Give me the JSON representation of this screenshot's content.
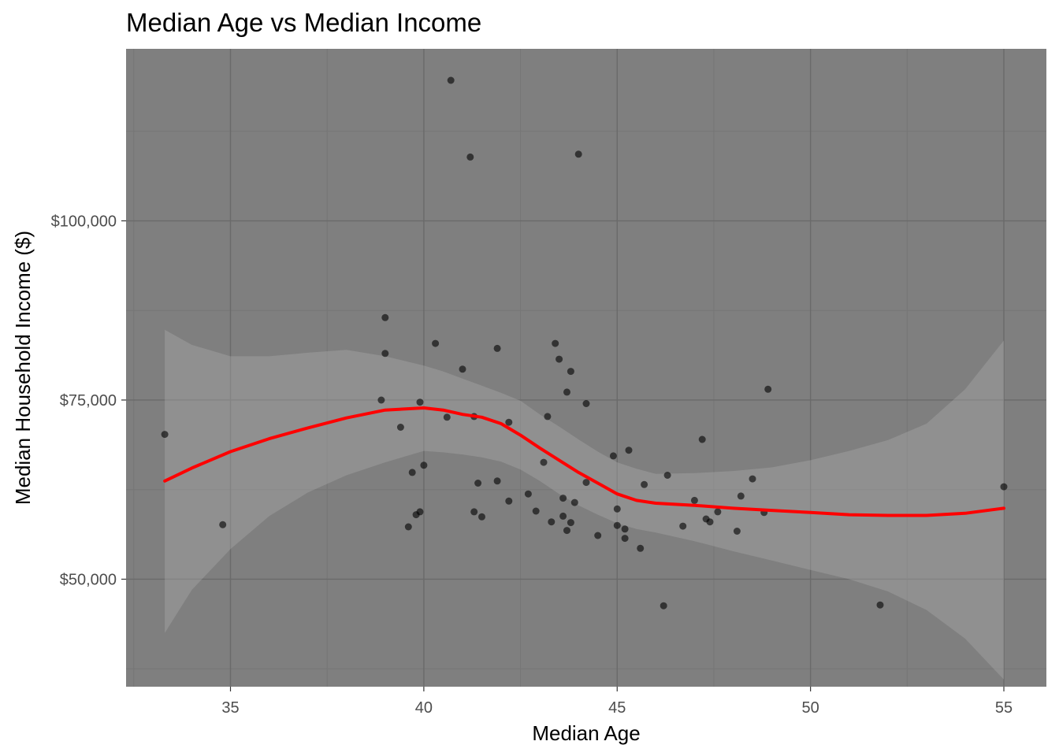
{
  "chart_data": {
    "type": "scatter",
    "title": "Median Age vs Median Income",
    "xlabel": "Median Age",
    "ylabel": "Median Household Income ($)",
    "xlim": [
      32.3,
      56.1
    ],
    "ylim": [
      35000,
      124000
    ],
    "x_ticks": [
      35,
      40,
      45,
      50,
      55
    ],
    "x_tick_labels": [
      "35",
      "40",
      "45",
      "50",
      "55"
    ],
    "y_ticks": [
      50000,
      75000,
      100000
    ],
    "y_tick_labels": [
      "$50,000",
      "$75,000",
      "$100,000"
    ],
    "grid": true,
    "colors": {
      "panel": "#7f7f7f",
      "grid_major": "#6a6a6a",
      "grid_minor": "#767676",
      "points": "#000000",
      "smooth": "#ff0000",
      "ribbon": "#aaaaaa"
    },
    "points": [
      [
        33.3,
        70200
      ],
      [
        34.8,
        57600
      ],
      [
        38.9,
        75000
      ],
      [
        39.0,
        86500
      ],
      [
        39.0,
        81500
      ],
      [
        39.4,
        71200
      ],
      [
        39.6,
        57300
      ],
      [
        39.7,
        64900
      ],
      [
        39.8,
        59000
      ],
      [
        39.9,
        59400
      ],
      [
        39.9,
        74700
      ],
      [
        40.0,
        65900
      ],
      [
        40.3,
        82900
      ],
      [
        40.6,
        72600
      ],
      [
        40.7,
        119600
      ],
      [
        41.0,
        79300
      ],
      [
        41.2,
        108900
      ],
      [
        41.3,
        59400
      ],
      [
        41.3,
        72700
      ],
      [
        41.4,
        63400
      ],
      [
        41.5,
        58700
      ],
      [
        41.9,
        82200
      ],
      [
        41.9,
        63700
      ],
      [
        42.2,
        60900
      ],
      [
        42.2,
        71900
      ],
      [
        42.7,
        61900
      ],
      [
        42.9,
        59500
      ],
      [
        43.1,
        66300
      ],
      [
        43.2,
        72700
      ],
      [
        43.3,
        58000
      ],
      [
        43.4,
        82900
      ],
      [
        43.5,
        80700
      ],
      [
        43.6,
        61300
      ],
      [
        43.6,
        58800
      ],
      [
        43.7,
        76100
      ],
      [
        43.7,
        56800
      ],
      [
        43.8,
        79000
      ],
      [
        43.8,
        57900
      ],
      [
        43.9,
        60700
      ],
      [
        44.0,
        109300
      ],
      [
        44.2,
        63500
      ],
      [
        44.2,
        74500
      ],
      [
        44.5,
        56100
      ],
      [
        44.9,
        67200
      ],
      [
        45.0,
        59800
      ],
      [
        45.0,
        57500
      ],
      [
        45.2,
        57000
      ],
      [
        45.2,
        55700
      ],
      [
        45.3,
        68000
      ],
      [
        45.6,
        54300
      ],
      [
        45.7,
        63200
      ],
      [
        46.2,
        46300
      ],
      [
        46.3,
        64500
      ],
      [
        46.7,
        57400
      ],
      [
        47.0,
        61000
      ],
      [
        47.2,
        69500
      ],
      [
        47.3,
        58400
      ],
      [
        47.4,
        58000
      ],
      [
        47.6,
        59400
      ],
      [
        48.1,
        56700
      ],
      [
        48.2,
        61600
      ],
      [
        48.5,
        64000
      ],
      [
        48.8,
        59300
      ],
      [
        48.9,
        76500
      ],
      [
        51.8,
        46400
      ],
      [
        55.0,
        62900
      ]
    ],
    "smooth": {
      "x": [
        33.3,
        34,
        35,
        36,
        37,
        38,
        39,
        40,
        40.5,
        41,
        41.5,
        42,
        42.5,
        43,
        43.5,
        44,
        44.5,
        45,
        45.5,
        46,
        47,
        48,
        49,
        50,
        51,
        52,
        53,
        54,
        55
      ],
      "y": [
        63700,
        65500,
        67800,
        69600,
        71100,
        72500,
        73600,
        73900,
        73600,
        73000,
        72600,
        71700,
        70100,
        68300,
        66600,
        64900,
        63400,
        61900,
        61000,
        60600,
        60300,
        59900,
        59600,
        59300,
        59000,
        58900,
        58900,
        59200,
        59900
      ],
      "lower": [
        42500,
        48500,
        54200,
        58800,
        62100,
        64500,
        66300,
        67900,
        67700,
        67400,
        67000,
        66400,
        65300,
        63700,
        61900,
        60300,
        59000,
        57800,
        57000,
        56500,
        55300,
        53900,
        52600,
        51300,
        50000,
        48300,
        45700,
        41700,
        36000
      ],
      "upper": [
        84800,
        82700,
        81100,
        81100,
        81600,
        82000,
        81100,
        79800,
        79000,
        78000,
        77000,
        76000,
        74900,
        73000,
        71300,
        69500,
        67800,
        66300,
        65400,
        64700,
        64800,
        65100,
        65600,
        66600,
        67900,
        69400,
        71700,
        76500,
        83300
      ]
    }
  }
}
